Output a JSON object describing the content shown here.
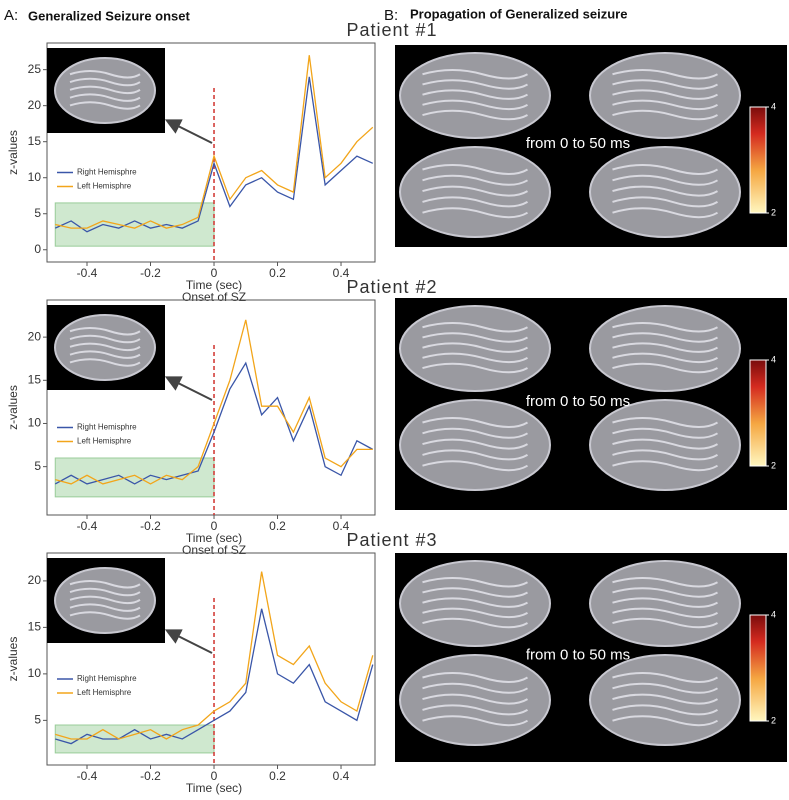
{
  "panel_a": {
    "letter": "A:",
    "title": "Generalized Seizure onset"
  },
  "panel_b": {
    "letter": "B:",
    "title": "Propagation of Generalized seizure"
  },
  "brain_panels": [
    {
      "caption": "from 0 to 50 ms",
      "colorbar": {
        "lim": [
          2,
          4
        ],
        "ticks": [
          2,
          4
        ]
      }
    },
    {
      "caption": "from 0 to 50 ms",
      "colorbar": {
        "lim": [
          2,
          4
        ],
        "ticks": [
          2,
          4
        ]
      }
    },
    {
      "caption": "from 0 to 50 ms",
      "colorbar": {
        "lim": [
          2,
          4
        ],
        "ticks": [
          2,
          4
        ]
      }
    }
  ],
  "chart_data": [
    {
      "type": "line",
      "title": "Patient #1",
      "xlabel": "Time (sec)",
      "annotation": "Onset of SZ",
      "ylabel": "z-values",
      "xlim": [
        -0.526,
        0.507
      ],
      "xticks": [
        -0.4,
        -0.2,
        0,
        0.2,
        0.4
      ],
      "ylim": [
        -1.7,
        28.7
      ],
      "yticks": [
        0,
        5,
        10,
        15,
        20,
        25
      ],
      "vline": {
        "x": 0,
        "color": "#d0312d"
      },
      "shaded_region": {
        "x": [
          -0.5,
          0
        ],
        "y": [
          0.5,
          6.5
        ],
        "color": "#cfe8cf"
      },
      "legend": "center left",
      "x": [
        -0.5,
        -0.45,
        -0.4,
        -0.35,
        -0.3,
        -0.25,
        -0.2,
        -0.15,
        -0.1,
        -0.05,
        0,
        0.05,
        0.1,
        0.15,
        0.2,
        0.25,
        0.3,
        0.35,
        0.4,
        0.45,
        0.5
      ],
      "series": [
        {
          "name": "Right Hemisphre",
          "color": "#3a56a8",
          "values": [
            3,
            4,
            2.5,
            3.5,
            3,
            4,
            3,
            3.5,
            3,
            4,
            12,
            6,
            9,
            10,
            8,
            7,
            24,
            9,
            11,
            13,
            12
          ]
        },
        {
          "name": "Left Hemisphre",
          "color": "#f2a51a",
          "values": [
            3.5,
            3,
            3,
            4,
            3.5,
            3,
            4,
            3,
            3.5,
            4.5,
            13,
            7,
            10,
            11,
            9,
            8,
            27,
            10,
            12,
            15,
            17
          ]
        }
      ]
    },
    {
      "type": "line",
      "title": "Patient #2",
      "xlabel": "Time (sec)",
      "annotation": "Onset of SZ",
      "ylabel": "z-values",
      "xlim": [
        -0.526,
        0.507
      ],
      "xticks": [
        -0.4,
        -0.2,
        0,
        0.2,
        0.4
      ],
      "ylim": [
        -0.6,
        24.3
      ],
      "yticks": [
        5,
        10,
        15,
        20
      ],
      "vline": {
        "x": 0,
        "color": "#d0312d"
      },
      "shaded_region": {
        "x": [
          -0.5,
          0
        ],
        "y": [
          1.5,
          6
        ],
        "color": "#cfe8cf"
      },
      "legend": "center left",
      "x": [
        -0.5,
        -0.45,
        -0.4,
        -0.35,
        -0.3,
        -0.25,
        -0.2,
        -0.15,
        -0.1,
        -0.05,
        0,
        0.05,
        0.1,
        0.15,
        0.2,
        0.25,
        0.3,
        0.35,
        0.4,
        0.45,
        0.5
      ],
      "series": [
        {
          "name": "Right Hemisphre",
          "color": "#3a56a8",
          "values": [
            3,
            4,
            3,
            3.5,
            4,
            3,
            4,
            3.5,
            4,
            4.5,
            9,
            14,
            17,
            11,
            13,
            8,
            12,
            5,
            4,
            8,
            7
          ]
        },
        {
          "name": "Left Hemisphre",
          "color": "#f2a51a",
          "values": [
            3.5,
            3,
            4,
            3,
            3.5,
            4,
            3,
            4,
            3.5,
            5,
            10,
            15,
            22,
            12,
            12,
            9,
            13,
            6,
            5,
            7,
            7
          ]
        }
      ]
    },
    {
      "type": "line",
      "title": "Patient #3",
      "xlabel": "Time (sec)",
      "ylabel": "z-values",
      "xlim": [
        -0.526,
        0.507
      ],
      "xticks": [
        -0.4,
        -0.2,
        0,
        0.2,
        0.4
      ],
      "ylim": [
        0.2,
        23
      ],
      "yticks": [
        5,
        10,
        15,
        20
      ],
      "vline": {
        "x": 0,
        "color": "#d0312d"
      },
      "shaded_region": {
        "x": [
          -0.5,
          0
        ],
        "y": [
          1.5,
          4.5
        ],
        "color": "#cfe8cf"
      },
      "legend": "center left",
      "x": [
        -0.5,
        -0.45,
        -0.4,
        -0.35,
        -0.3,
        -0.25,
        -0.2,
        -0.15,
        -0.1,
        -0.05,
        0,
        0.05,
        0.1,
        0.15,
        0.2,
        0.25,
        0.3,
        0.35,
        0.4,
        0.45,
        0.5
      ],
      "series": [
        {
          "name": "Right Hemisphre",
          "color": "#3a56a8",
          "values": [
            3,
            2.5,
            3.5,
            3,
            3,
            4,
            3,
            3.5,
            3,
            4,
            5,
            6,
            8,
            17,
            10,
            9,
            11,
            7,
            6,
            5,
            11
          ]
        },
        {
          "name": "Left Hemisphre",
          "color": "#f2a51a",
          "values": [
            3.5,
            3,
            3,
            4,
            3,
            3.5,
            4,
            3,
            4,
            4.5,
            6,
            7,
            9,
            21,
            12,
            11,
            13,
            9,
            7,
            6,
            12
          ]
        }
      ]
    }
  ]
}
